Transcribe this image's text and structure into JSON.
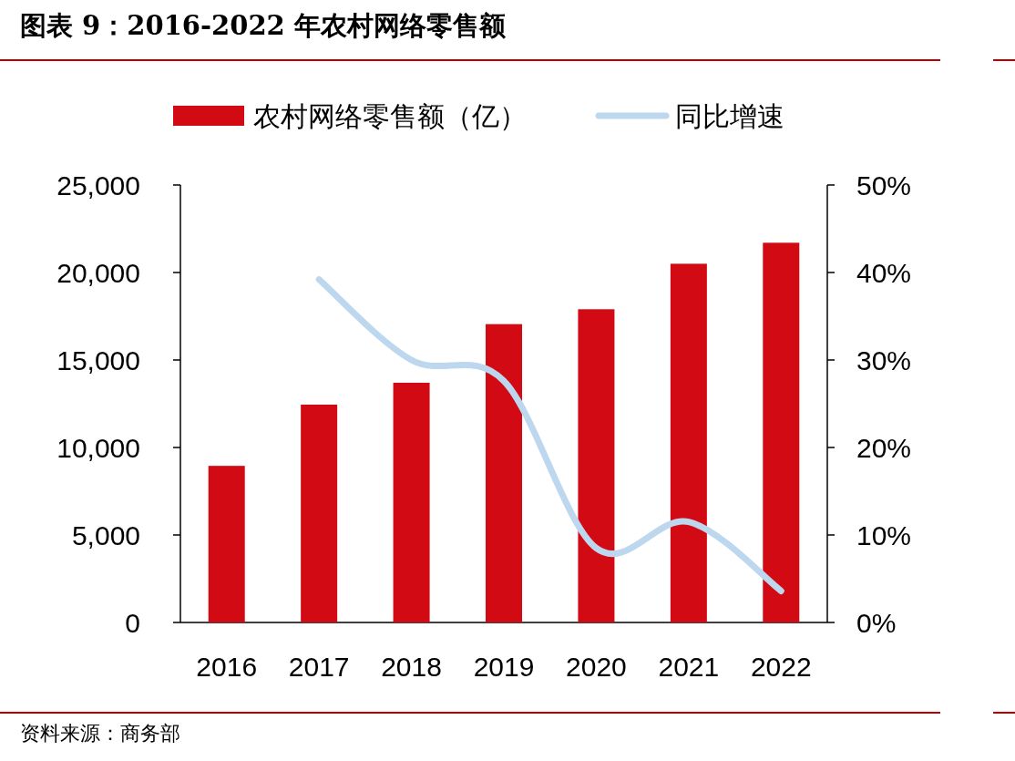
{
  "chart_data": {
    "type": "bar",
    "title": "图表 9：2016-2022 年农村网络零售额",
    "categories": [
      "2016",
      "2017",
      "2018",
      "2019",
      "2020",
      "2021",
      "2022"
    ],
    "series": [
      {
        "name": "农村网络零售额（亿）",
        "color": "#d10a14",
        "values": [
          8950,
          12450,
          13700,
          17050,
          17900,
          20500,
          21700
        ]
      },
      {
        "name": "同比增速",
        "type": "line",
        "axis": "y2",
        "color": "#bdd7ee",
        "values": [
          null,
          39.2,
          30.0,
          27.6,
          8.5,
          11.5,
          3.6
        ]
      }
    ],
    "ylim": [
      0,
      25000
    ],
    "yticks": [
      {
        "value": 0,
        "label": "0"
      },
      {
        "value": 5000,
        "label": "5,000"
      },
      {
        "value": 10000,
        "label": "10,000"
      },
      {
        "value": 15000,
        "label": "15,000"
      },
      {
        "value": 20000,
        "label": "20,000"
      },
      {
        "value": 25000,
        "label": "25,000"
      }
    ],
    "y2lim": [
      0,
      50
    ],
    "y2ticks": [
      {
        "value": 0,
        "label": "0%"
      },
      {
        "value": 10,
        "label": "10%"
      },
      {
        "value": 20,
        "label": "20%"
      },
      {
        "value": 30,
        "label": "30%"
      },
      {
        "value": 40,
        "label": "40%"
      },
      {
        "value": 50,
        "label": "50%"
      }
    ],
    "legend": "top",
    "grid": false,
    "annotations": [
      "资料来源：商务部"
    ]
  }
}
